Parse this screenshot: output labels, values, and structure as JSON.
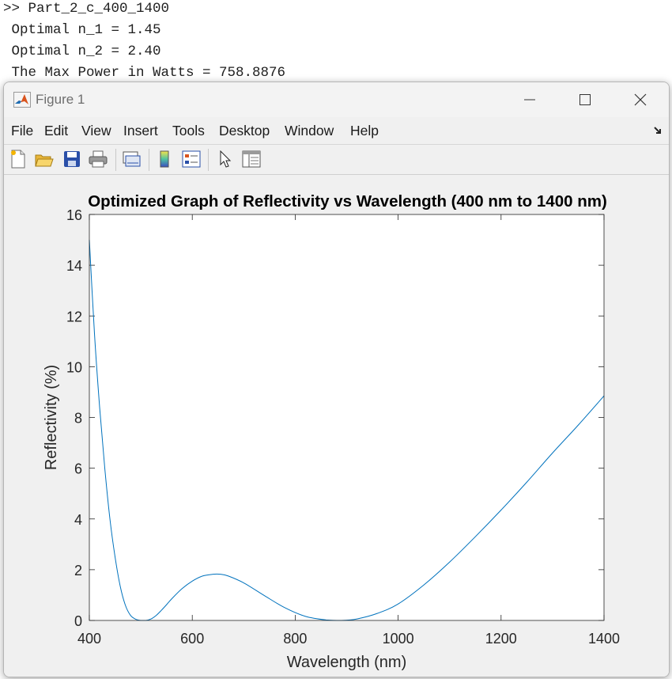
{
  "console": {
    "lines": [
      ">> Part_2_c_400_1400",
      " Optimal n_1 = 1.45",
      " Optimal n_2 = 2.40",
      " The Max Power in Watts = 758.8876"
    ]
  },
  "window": {
    "title": "Figure 1",
    "icon": "matlab-logo-icon"
  },
  "menu": [
    "File",
    "Edit",
    "View",
    "Insert",
    "Tools",
    "Desktop",
    "Window",
    "Help"
  ],
  "toolbar_icons": [
    "new-figure-icon",
    "open-file-icon",
    "save-icon",
    "print-icon",
    "link-plot-icon",
    "colorbar-icon",
    "legend-icon",
    "edit-plot-pointer-icon",
    "property-inspector-icon"
  ],
  "colors": {
    "line": "#0072bd",
    "title_text": "#000000",
    "axes_bg": "#ffffff",
    "figure_bg": "#f0f0f0"
  },
  "chart_data": {
    "type": "line",
    "title": "Optimized Graph of Reflectivity vs Wavelength (400 nm to 1400 nm)",
    "xlabel": "Wavelength (nm)",
    "ylabel": "Reflectivity (%)",
    "xlim": [
      400,
      1400
    ],
    "ylim": [
      0,
      16
    ],
    "xticks": [
      400,
      600,
      800,
      1000,
      1200,
      1400
    ],
    "yticks": [
      0,
      2,
      4,
      6,
      8,
      10,
      12,
      14,
      16
    ],
    "grid": false,
    "series": [
      {
        "x": [
          400,
          410,
          420,
          430,
          440,
          450,
          460,
          470,
          480,
          490,
          500,
          510,
          520,
          530,
          540,
          550,
          560,
          580,
          600,
          620,
          640,
          655,
          670,
          700,
          740,
          780,
          820,
          860,
          890,
          920,
          960,
          1000,
          1050,
          1100,
          1150,
          1200,
          1250,
          1300,
          1350,
          1400
        ],
        "y": [
          15.0,
          11.3,
          8.4,
          6.0,
          4.0,
          2.5,
          1.35,
          0.6,
          0.2,
          0.05,
          0.0,
          0.0,
          0.06,
          0.2,
          0.4,
          0.62,
          0.85,
          1.25,
          1.55,
          1.75,
          1.82,
          1.82,
          1.75,
          1.48,
          0.98,
          0.5,
          0.16,
          0.02,
          0.0,
          0.06,
          0.28,
          0.65,
          1.4,
          2.3,
          3.3,
          4.35,
          5.45,
          6.6,
          7.7,
          8.85
        ]
      }
    ]
  }
}
